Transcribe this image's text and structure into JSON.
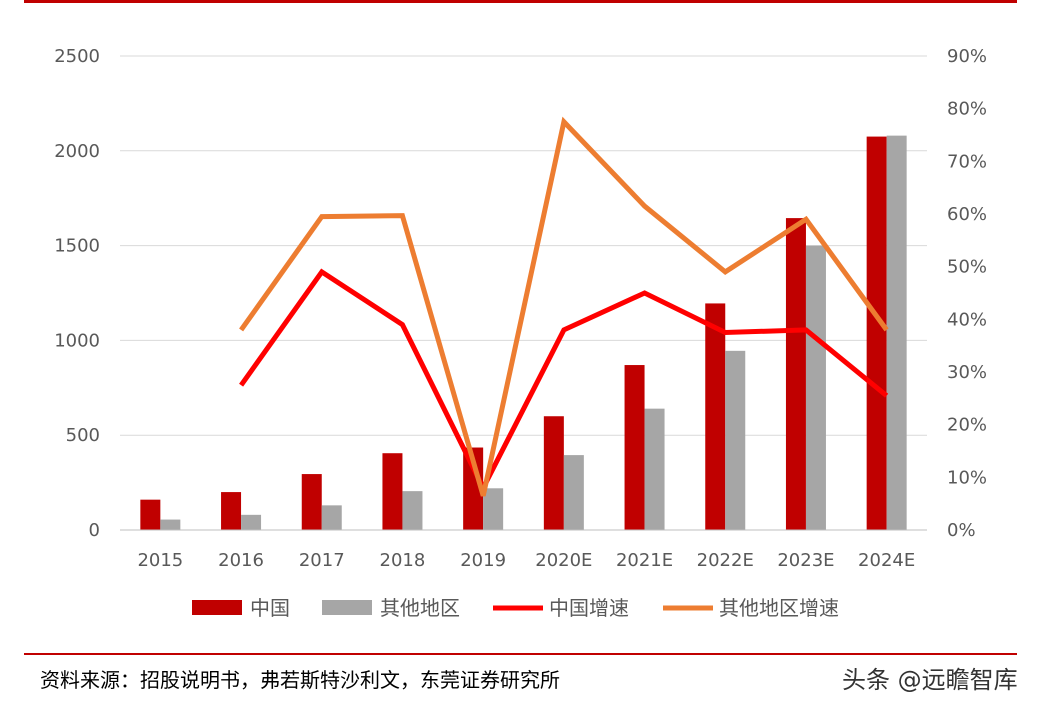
{
  "chart_data": {
    "type": "bar",
    "categories": [
      "2015",
      "2016",
      "2017",
      "2018",
      "2019",
      "2020E",
      "2021E",
      "2022E",
      "2023E",
      "2024E"
    ],
    "series": [
      {
        "name": "中国",
        "kind": "bar",
        "axis": "left",
        "color": "#c00000",
        "values": [
          160,
          200,
          295,
          405,
          435,
          600,
          870,
          1195,
          1645,
          2075
        ]
      },
      {
        "name": "其他地区",
        "kind": "bar",
        "axis": "left",
        "color": "#a6a6a6",
        "values": [
          55,
          80,
          130,
          205,
          220,
          395,
          640,
          945,
          1500,
          2080
        ]
      },
      {
        "name": "中国增速",
        "kind": "line",
        "axis": "right",
        "color": "#ff0000",
        "values": [
          null,
          0.275,
          0.49,
          0.39,
          0.08,
          0.38,
          0.45,
          0.375,
          0.38,
          0.255
        ]
      },
      {
        "name": "其他地区增速",
        "kind": "line",
        "axis": "right",
        "color": "#ed7d31",
        "values": [
          null,
          0.38,
          0.595,
          0.597,
          0.065,
          0.775,
          0.615,
          0.49,
          0.59,
          0.38
        ]
      }
    ],
    "left_axis": {
      "ylim": [
        0,
        2500
      ],
      "ticks": [
        "0",
        "500",
        "1000",
        "1500",
        "2000",
        "2500"
      ]
    },
    "right_axis": {
      "ylim": [
        0,
        0.9
      ],
      "ticks": [
        "0%",
        "10%",
        "20%",
        "30%",
        "40%",
        "50%",
        "60%",
        "70%",
        "80%",
        "90%"
      ]
    },
    "grid": true,
    "legend_position": "bottom"
  },
  "source_text": "资料来源：招股说明书，弗若斯特沙利文，东莞证券研究所",
  "watermark_text": "头条 @远瞻智库"
}
